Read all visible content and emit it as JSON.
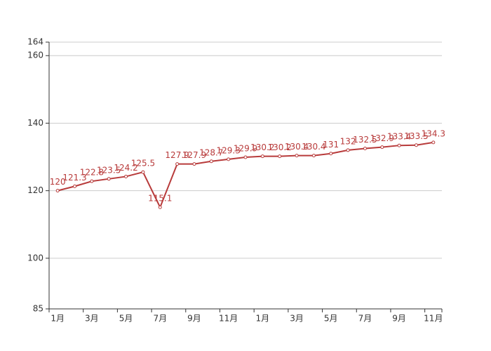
{
  "chart_data": {
    "type": "line",
    "categories": [
      "1月",
      null,
      "3月",
      null,
      "5月",
      null,
      "7月",
      null,
      "9月",
      null,
      "11月",
      null,
      "1月",
      null,
      "3月",
      null,
      "5月",
      null,
      "7月",
      null,
      "9月",
      null,
      "11月"
    ],
    "series": [
      {
        "color": "#b83b3b",
        "values": [
          120,
          121.3,
          122.8,
          123.5,
          124.2,
          125.5,
          115.1,
          127.9,
          127.9,
          128.7,
          129.3,
          129.9,
          130.2,
          130.2,
          130.4,
          130.4,
          131,
          132,
          132.5,
          132.9,
          133.4,
          133.5,
          134.3
        ]
      }
    ],
    "ylim": [
      85,
      164
    ],
    "yticks": [
      85,
      100,
      120,
      140,
      160,
      164
    ],
    "grid": true
  }
}
